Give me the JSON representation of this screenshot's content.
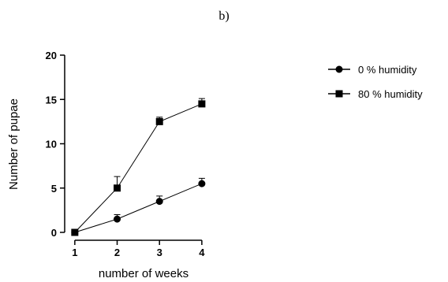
{
  "chart_data": {
    "type": "line",
    "panel_label": "b)",
    "xlabel": "number of weeks",
    "ylabel": "Number of pupae",
    "x": [
      1,
      2,
      3,
      4
    ],
    "x_ticks": [
      "1",
      "2",
      "3",
      "4"
    ],
    "xlim": [
      0.5,
      4.3
    ],
    "ylim": [
      0,
      20
    ],
    "y_ticks": [
      "0",
      "5",
      "10",
      "15",
      "20"
    ],
    "grid": false,
    "legend_position": "top-right",
    "series": [
      {
        "name": "0 % humidity",
        "marker": "circle",
        "values": [
          0,
          1.5,
          3.5,
          5.5
        ],
        "errors": [
          0.2,
          0.5,
          0.6,
          0.6
        ]
      },
      {
        "name": "80 % humidity",
        "marker": "square",
        "values": [
          0,
          5,
          12.5,
          14.5
        ],
        "errors": [
          0.2,
          1.3,
          0.5,
          0.6
        ]
      }
    ],
    "colors": {
      "line": "#000000"
    }
  }
}
